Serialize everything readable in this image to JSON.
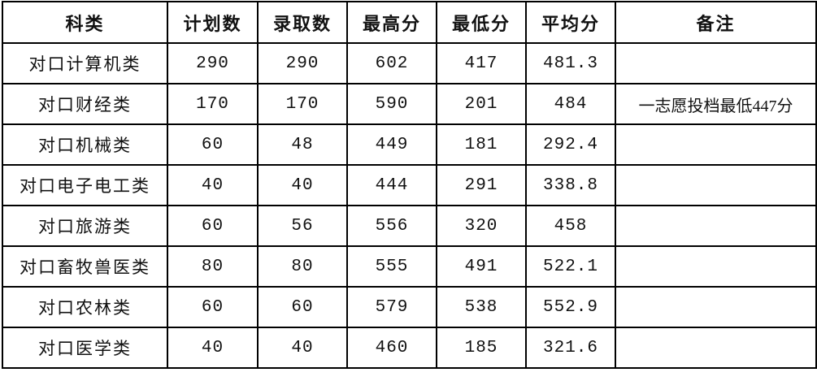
{
  "table": {
    "headers": [
      "科类",
      "计划数",
      "录取数",
      "最高分",
      "最低分",
      "平均分",
      "备注"
    ],
    "rows": [
      [
        "对口计算机类",
        "290",
        "290",
        "602",
        "417",
        "481.3",
        ""
      ],
      [
        "对口财经类",
        "170",
        "170",
        "590",
        "201",
        "484",
        "一志愿投档最低447分"
      ],
      [
        "对口机械类",
        "60",
        "48",
        "449",
        "181",
        "292.4",
        ""
      ],
      [
        "对口电子电工类",
        "40",
        "40",
        "444",
        "291",
        "338.8",
        ""
      ],
      [
        "对口旅游类",
        "60",
        "56",
        "556",
        "320",
        "458",
        ""
      ],
      [
        "对口畜牧兽医类",
        "80",
        "80",
        "555",
        "491",
        "522.1",
        ""
      ],
      [
        "对口农林类",
        "60",
        "60",
        "579",
        "538",
        "552.9",
        ""
      ],
      [
        "对口医学类",
        "40",
        "40",
        "460",
        "185",
        "321.6",
        ""
      ]
    ]
  }
}
